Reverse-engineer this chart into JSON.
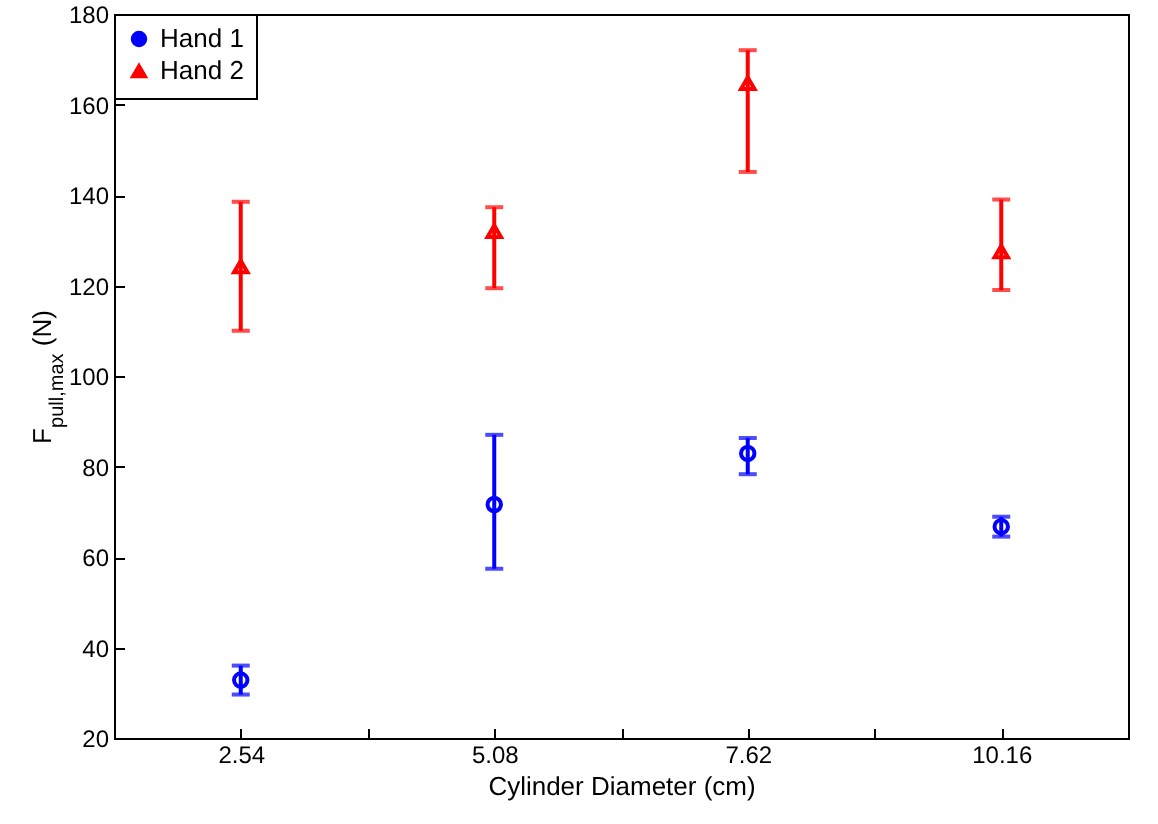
{
  "chart_data": {
    "type": "scatter",
    "xlabel": "Cylinder Diameter (cm)",
    "ylabel": "F$_{pull,max}$ (N)",
    "xlim": [
      1.27,
      11.43
    ],
    "xticks": [
      2.54,
      {
        "value": 3.81,
        "label": null
      },
      5.08,
      {
        "value": 6.35,
        "label": null
      },
      7.62,
      {
        "value": 8.89,
        "label": null
      },
      10.16
    ],
    "ylim": [
      20,
      180
    ],
    "yticks": [
      20,
      40,
      60,
      80,
      100,
      120,
      140,
      160,
      180
    ],
    "grid": false,
    "legend": "top left",
    "series": [
      {
        "name": "Hand 1",
        "color": "#0000ff",
        "marker": "circle",
        "x": [
          2.54,
          5.08,
          7.62,
          10.16
        ],
        "values": [
          32.8,
          71.6,
          82.9,
          66.7
        ],
        "errors": [
          [
            29.6,
            36.0
          ],
          [
            57.4,
            87.0
          ],
          [
            78.3,
            86.3
          ],
          [
            64.5,
            68.9
          ]
        ]
      },
      {
        "name": "Hand 2",
        "color": "#ff0000",
        "marker": "triangle",
        "x": [
          2.54,
          5.08,
          7.62,
          10.16
        ],
        "values": [
          124.2,
          132.0,
          164.7,
          127.5
        ],
        "errors": [
          [
            110.0,
            138.5
          ],
          [
            119.4,
            137.3
          ],
          [
            145.1,
            172.0
          ],
          [
            119.0,
            139.0
          ]
        ]
      }
    ]
  }
}
